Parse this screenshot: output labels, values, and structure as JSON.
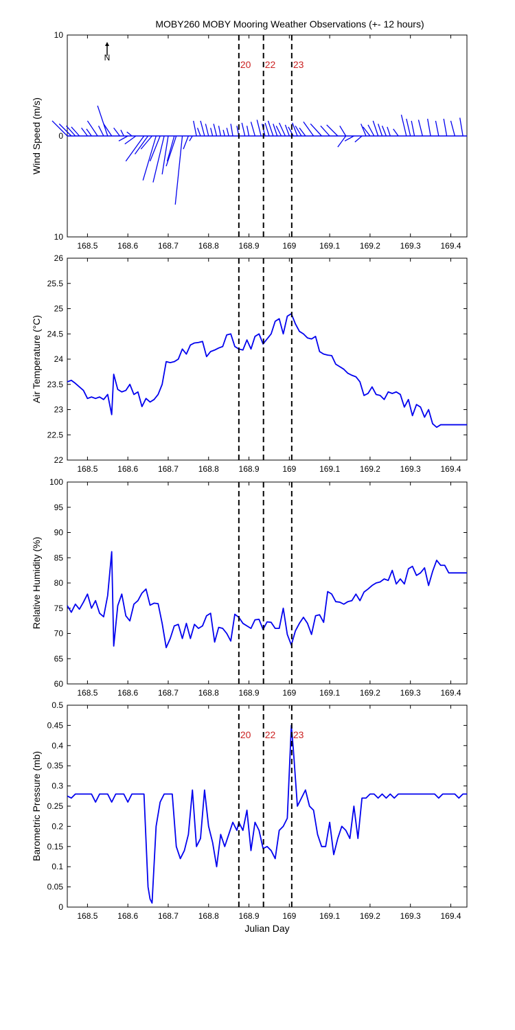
{
  "figure": {
    "title": "MOBY260 MOBY Mooring Weather Observations (+- 12 hours)",
    "north_label": "N",
    "marker_color": "#cc2222",
    "series_color": "#0000ee"
  },
  "chart_data": [
    {
      "type": "line",
      "name": "wind",
      "ylabel": "Wind Speed (m/s)",
      "xlabel": "",
      "xlim": [
        168.45,
        169.44
      ],
      "ylim": [
        -10,
        10
      ],
      "y_tick_labels": [
        "10",
        "0",
        "10"
      ],
      "x_tick_labels": [
        "168.5",
        "168.6",
        "168.7",
        "168.8",
        "168.9",
        "169",
        "169.1",
        "169.2",
        "169.3",
        "169.4"
      ],
      "markers": [
        {
          "label": "20",
          "x": 168.875,
          "show_label": true
        },
        {
          "label": "22",
          "x": 168.936,
          "show_label": true
        },
        {
          "label": "23",
          "x": 169.006,
          "show_label": true
        }
      ],
      "vectors": [
        [
          168.45,
          1.5,
          -1.5
        ],
        [
          168.46,
          1.2,
          -1.2
        ],
        [
          168.47,
          1.0,
          -0.9
        ],
        [
          168.48,
          0.9,
          -0.8
        ],
        [
          168.5,
          0.8,
          -0.6
        ],
        [
          168.51,
          0.7,
          -0.5
        ],
        [
          168.525,
          1.5,
          -1.0
        ],
        [
          168.54,
          1.0,
          -0.5
        ],
        [
          168.55,
          3.0,
          -1.0
        ],
        [
          168.56,
          1.2,
          -0.8
        ],
        [
          168.58,
          0.8,
          -0.6
        ],
        [
          168.59,
          0.6,
          -0.3
        ],
        [
          168.6,
          -0.5,
          -0.9
        ],
        [
          168.61,
          0.4,
          -0.5
        ],
        [
          168.62,
          -0.8,
          -1.1
        ],
        [
          168.64,
          -2.5,
          -1.8
        ],
        [
          168.65,
          -1.8,
          -1.3
        ],
        [
          168.66,
          -1.3,
          -1.1
        ],
        [
          168.67,
          -4.4,
          -1.3
        ],
        [
          168.68,
          -2.5,
          -1.0
        ],
        [
          168.69,
          -4.6,
          -1.1
        ],
        [
          168.7,
          -3.8,
          -0.6
        ],
        [
          168.715,
          -2.5,
          -0.7
        ],
        [
          168.72,
          -3.0,
          -1.0
        ],
        [
          168.735,
          -6.8,
          -0.7
        ],
        [
          168.75,
          -1.3,
          -0.5
        ],
        [
          168.76,
          -0.5,
          -0.3
        ],
        [
          168.77,
          1.5,
          -0.3
        ],
        [
          168.78,
          0.8,
          -0.3
        ],
        [
          168.79,
          1.5,
          -0.4
        ],
        [
          168.8,
          1.2,
          -0.3
        ],
        [
          168.81,
          0.8,
          -0.2
        ],
        [
          168.82,
          1.2,
          -0.3
        ],
        [
          168.83,
          1.0,
          -0.2
        ],
        [
          168.84,
          0.6,
          -0.15
        ],
        [
          168.85,
          0.8,
          -0.2
        ],
        [
          168.86,
          1.2,
          -0.2
        ],
        [
          168.875,
          1.0,
          -0.2
        ],
        [
          168.89,
          1.3,
          -0.3
        ],
        [
          168.9,
          1.0,
          -0.2
        ],
        [
          168.915,
          1.4,
          -0.4
        ],
        [
          168.93,
          1.6,
          -0.4
        ],
        [
          168.94,
          1.2,
          -0.3
        ],
        [
          168.95,
          1.3,
          -0.4
        ],
        [
          168.96,
          1.5,
          -0.5
        ],
        [
          168.97,
          1.2,
          -0.4
        ],
        [
          168.98,
          1.0,
          -0.5
        ],
        [
          168.99,
          1.3,
          -0.6
        ],
        [
          169.0,
          1.1,
          -0.4
        ],
        [
          169.01,
          0.9,
          -0.5
        ],
        [
          169.02,
          1.3,
          -0.5
        ],
        [
          169.03,
          1.0,
          -0.6
        ],
        [
          169.04,
          0.8,
          -0.6
        ],
        [
          169.06,
          1.4,
          -1.0
        ],
        [
          169.08,
          1.2,
          -1.1
        ],
        [
          169.1,
          1.0,
          -0.9
        ],
        [
          169.12,
          1.1,
          -1.1
        ],
        [
          169.14,
          1.0,
          -0.6
        ],
        [
          169.14,
          -1.1,
          -0.8
        ],
        [
          169.16,
          -0.5,
          -0.9
        ],
        [
          169.18,
          -0.6,
          -0.7
        ],
        [
          169.19,
          1.2,
          -0.5
        ],
        [
          169.2,
          0.9,
          -0.7
        ],
        [
          169.21,
          1.1,
          -0.6
        ],
        [
          169.22,
          1.5,
          -0.5
        ],
        [
          169.23,
          1.2,
          -0.4
        ],
        [
          169.24,
          1.0,
          -0.4
        ],
        [
          169.25,
          0.9,
          -0.3
        ],
        [
          169.27,
          0.7,
          -0.5
        ],
        [
          169.29,
          2.1,
          -0.5
        ],
        [
          169.3,
          1.7,
          -0.4
        ],
        [
          169.31,
          1.5,
          -0.3
        ],
        [
          169.33,
          1.6,
          -0.4
        ],
        [
          169.35,
          1.7,
          -0.3
        ],
        [
          169.37,
          1.5,
          -0.3
        ],
        [
          169.39,
          1.7,
          -0.3
        ],
        [
          169.41,
          1.5,
          -0.4
        ],
        [
          169.43,
          1.8,
          -0.3
        ]
      ]
    },
    {
      "type": "line",
      "name": "air_temperature",
      "ylabel": "Air Temperature (°C)",
      "xlabel": "",
      "xlim": [
        168.45,
        169.44
      ],
      "ylim": [
        22,
        26
      ],
      "y_tick_labels": [
        "22",
        "22.5",
        "23",
        "23.5",
        "24",
        "24.5",
        "25",
        "25.5",
        "26"
      ],
      "x_tick_labels": [
        "168.5",
        "168.6",
        "168.7",
        "168.8",
        "168.9",
        "169",
        "169.1",
        "169.2",
        "169.3",
        "169.4"
      ],
      "markers": [
        {
          "label": "20",
          "x": 168.875,
          "show_label": false
        },
        {
          "label": "22",
          "x": 168.936,
          "show_label": false
        },
        {
          "label": "23",
          "x": 169.006,
          "show_label": false
        }
      ],
      "x": [
        168.45,
        168.46,
        168.47,
        168.48,
        168.49,
        168.5,
        168.51,
        168.52,
        168.53,
        168.54,
        168.55,
        168.56,
        168.565,
        168.575,
        168.585,
        168.595,
        168.605,
        168.615,
        168.625,
        168.635,
        168.645,
        168.655,
        168.665,
        168.675,
        168.685,
        168.695,
        168.705,
        168.715,
        168.725,
        168.735,
        168.745,
        168.755,
        168.765,
        168.775,
        168.785,
        168.795,
        168.805,
        168.815,
        168.825,
        168.835,
        168.845,
        168.855,
        168.865,
        168.875,
        168.885,
        168.895,
        168.905,
        168.915,
        168.925,
        168.935,
        168.945,
        168.955,
        168.965,
        168.975,
        168.985,
        168.995,
        169.005,
        169.015,
        169.025,
        169.035,
        169.045,
        169.055,
        169.065,
        169.075,
        169.085,
        169.095,
        169.105,
        169.115,
        169.125,
        169.135,
        169.145,
        169.155,
        169.165,
        169.175,
        169.185,
        169.195,
        169.205,
        169.215,
        169.225,
        169.235,
        169.245,
        169.255,
        169.265,
        169.275,
        169.285,
        169.295,
        169.305,
        169.315,
        169.325,
        169.335,
        169.345,
        169.355,
        169.365,
        169.375,
        169.385,
        169.395,
        169.405,
        169.415,
        169.425,
        169.435,
        169.44
      ],
      "y": [
        23.55,
        23.58,
        23.52,
        23.45,
        23.38,
        23.22,
        23.25,
        23.22,
        23.25,
        23.2,
        23.3,
        22.9,
        23.7,
        23.4,
        23.35,
        23.38,
        23.5,
        23.3,
        23.35,
        23.06,
        23.22,
        23.15,
        23.2,
        23.3,
        23.5,
        23.95,
        23.93,
        23.95,
        24.0,
        24.2,
        24.1,
        24.28,
        24.32,
        24.33,
        24.35,
        24.05,
        24.15,
        24.18,
        24.22,
        24.25,
        24.48,
        24.5,
        24.25,
        24.2,
        24.18,
        24.38,
        24.2,
        24.45,
        24.5,
        24.3,
        24.4,
        24.5,
        24.75,
        24.8,
        24.5,
        24.85,
        24.9,
        24.7,
        24.55,
        24.5,
        24.42,
        24.4,
        24.45,
        24.15,
        24.1,
        24.08,
        24.07,
        23.9,
        23.85,
        23.8,
        23.72,
        23.68,
        23.65,
        23.55,
        23.28,
        23.32,
        23.45,
        23.3,
        23.28,
        23.2,
        23.35,
        23.32,
        23.35,
        23.3,
        23.05,
        23.2,
        22.88,
        23.1,
        23.05,
        22.85,
        23.0,
        22.72,
        22.65,
        22.7,
        22.7,
        22.7,
        22.7,
        22.7,
        22.7,
        22.7,
        22.7
      ]
    },
    {
      "type": "line",
      "name": "relative_humidity",
      "ylabel": "Relative Humidity (%)",
      "xlabel": "",
      "xlim": [
        168.45,
        169.44
      ],
      "ylim": [
        60,
        100
      ],
      "y_tick_labels": [
        "60",
        "65",
        "70",
        "75",
        "80",
        "85",
        "90",
        "95",
        "100"
      ],
      "x_tick_labels": [
        "168.5",
        "168.6",
        "168.7",
        "168.8",
        "168.9",
        "169",
        "169.1",
        "169.2",
        "169.3",
        "169.4"
      ],
      "markers": [
        {
          "label": "20",
          "x": 168.875,
          "show_label": false
        },
        {
          "label": "22",
          "x": 168.936,
          "show_label": false
        },
        {
          "label": "23",
          "x": 169.006,
          "show_label": false
        }
      ],
      "x": [
        168.45,
        168.46,
        168.47,
        168.48,
        168.49,
        168.5,
        168.51,
        168.52,
        168.53,
        168.54,
        168.55,
        168.56,
        168.565,
        168.575,
        168.585,
        168.595,
        168.605,
        168.615,
        168.625,
        168.635,
        168.645,
        168.655,
        168.665,
        168.675,
        168.685,
        168.695,
        168.705,
        168.715,
        168.725,
        168.735,
        168.745,
        168.755,
        168.765,
        168.775,
        168.785,
        168.795,
        168.805,
        168.815,
        168.825,
        168.835,
        168.845,
        168.855,
        168.865,
        168.875,
        168.885,
        168.895,
        168.905,
        168.915,
        168.925,
        168.935,
        168.945,
        168.955,
        168.965,
        168.975,
        168.985,
        168.995,
        169.005,
        169.015,
        169.025,
        169.035,
        169.045,
        169.055,
        169.065,
        169.075,
        169.085,
        169.095,
        169.105,
        169.115,
        169.125,
        169.135,
        169.145,
        169.155,
        169.165,
        169.175,
        169.185,
        169.195,
        169.205,
        169.215,
        169.225,
        169.235,
        169.245,
        169.255,
        169.265,
        169.275,
        169.285,
        169.295,
        169.305,
        169.315,
        169.325,
        169.335,
        169.345,
        169.355,
        169.365,
        169.375,
        169.385,
        169.395,
        169.405,
        169.415,
        169.425,
        169.435,
        169.44
      ],
      "y": [
        75.5,
        74.2,
        75.8,
        74.8,
        76.2,
        77.8,
        75.0,
        76.5,
        74.0,
        73.3,
        77.5,
        86.2,
        67.5,
        75.5,
        77.8,
        73.5,
        72.5,
        75.8,
        76.5,
        78.0,
        78.8,
        75.6,
        76.0,
        75.9,
        72.0,
        67.2,
        69.0,
        71.5,
        71.8,
        69.0,
        72.0,
        69.0,
        71.8,
        71.0,
        71.5,
        73.5,
        74.0,
        68.3,
        71.2,
        71.0,
        70.0,
        68.5,
        73.8,
        73.2,
        72.0,
        71.5,
        71.0,
        72.7,
        72.8,
        70.8,
        72.3,
        72.2,
        71.0,
        71.0,
        75.0,
        69.8,
        67.7,
        70.5,
        72.0,
        73.2,
        72.0,
        69.8,
        73.5,
        73.7,
        72.2,
        78.3,
        77.8,
        76.3,
        76.2,
        75.8,
        76.3,
        76.5,
        77.8,
        76.5,
        78.2,
        78.8,
        79.5,
        80.0,
        80.2,
        80.8,
        80.5,
        82.5,
        79.8,
        80.8,
        79.8,
        82.8,
        83.3,
        81.5,
        82.0,
        83.0,
        79.5,
        82.3,
        84.5,
        83.5,
        83.5,
        82.0,
        82.0,
        82.0,
        82.0,
        82.0,
        82.0
      ]
    },
    {
      "type": "line",
      "name": "barometric_pressure",
      "ylabel": "Barometric Pressure (mb)",
      "xlabel": "Julian Day",
      "xlim": [
        168.45,
        169.44
      ],
      "ylim": [
        0,
        0.5
      ],
      "y_tick_labels": [
        "0",
        "0.05",
        "0.1",
        "0.15",
        "0.2",
        "0.25",
        "0.3",
        "0.35",
        "0.4",
        "0.45",
        "0.5"
      ],
      "x_tick_labels": [
        "168.5",
        "168.6",
        "168.7",
        "168.8",
        "168.9",
        "169",
        "169.1",
        "169.2",
        "169.3",
        "169.4"
      ],
      "markers": [
        {
          "label": "20",
          "x": 168.875,
          "show_label": true
        },
        {
          "label": "22",
          "x": 168.936,
          "show_label": true
        },
        {
          "label": "23",
          "x": 169.006,
          "show_label": true
        }
      ],
      "x": [
        168.45,
        168.46,
        168.47,
        168.48,
        168.49,
        168.5,
        168.51,
        168.52,
        168.53,
        168.54,
        168.55,
        168.56,
        168.57,
        168.58,
        168.59,
        168.6,
        168.61,
        168.62,
        168.63,
        168.64,
        168.65,
        168.655,
        168.66,
        168.67,
        168.68,
        168.69,
        168.7,
        168.71,
        168.72,
        168.73,
        168.74,
        168.75,
        168.76,
        168.77,
        168.78,
        168.79,
        168.8,
        168.81,
        168.82,
        168.83,
        168.84,
        168.85,
        168.86,
        168.87,
        168.875,
        168.885,
        168.895,
        168.905,
        168.915,
        168.925,
        168.935,
        168.945,
        168.955,
        168.965,
        168.975,
        168.985,
        168.995,
        169.005,
        169.01,
        169.02,
        169.03,
        169.04,
        169.05,
        169.06,
        169.07,
        169.08,
        169.09,
        169.1,
        169.11,
        169.12,
        169.13,
        169.14,
        169.15,
        169.16,
        169.17,
        169.18,
        169.19,
        169.2,
        169.21,
        169.22,
        169.23,
        169.24,
        169.25,
        169.26,
        169.27,
        169.28,
        169.29,
        169.3,
        169.31,
        169.32,
        169.33,
        169.34,
        169.35,
        169.36,
        169.37,
        169.38,
        169.39,
        169.4,
        169.41,
        169.42,
        169.43,
        169.44
      ],
      "y": [
        0.275,
        0.27,
        0.28,
        0.28,
        0.28,
        0.28,
        0.28,
        0.26,
        0.28,
        0.28,
        0.28,
        0.26,
        0.28,
        0.28,
        0.28,
        0.26,
        0.28,
        0.28,
        0.28,
        0.28,
        0.05,
        0.02,
        0.01,
        0.2,
        0.26,
        0.28,
        0.28,
        0.28,
        0.15,
        0.12,
        0.14,
        0.18,
        0.29,
        0.15,
        0.17,
        0.29,
        0.2,
        0.16,
        0.1,
        0.18,
        0.15,
        0.18,
        0.21,
        0.19,
        0.21,
        0.19,
        0.24,
        0.14,
        0.21,
        0.19,
        0.145,
        0.15,
        0.14,
        0.12,
        0.19,
        0.2,
        0.22,
        0.45,
        0.39,
        0.25,
        0.27,
        0.29,
        0.25,
        0.24,
        0.18,
        0.15,
        0.15,
        0.21,
        0.13,
        0.17,
        0.2,
        0.19,
        0.17,
        0.25,
        0.17,
        0.27,
        0.27,
        0.28,
        0.28,
        0.27,
        0.28,
        0.27,
        0.28,
        0.27,
        0.28,
        0.28,
        0.28,
        0.28,
        0.28,
        0.28,
        0.28,
        0.28,
        0.28,
        0.28,
        0.27,
        0.28,
        0.28,
        0.28,
        0.28,
        0.27,
        0.28,
        0.28
      ]
    }
  ]
}
